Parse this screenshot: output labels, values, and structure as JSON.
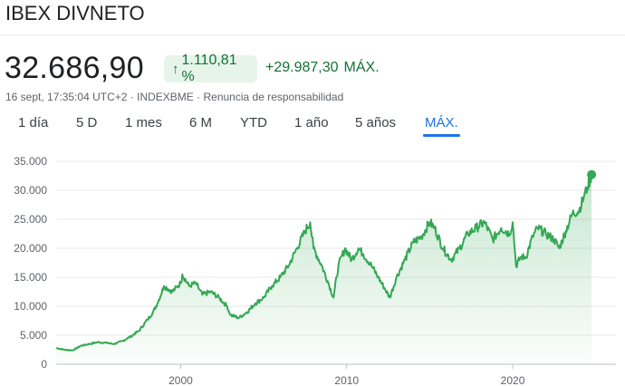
{
  "header": {
    "title": "IBEX DIVNETO",
    "price": "32.686,90",
    "change_pct": "1.110,81 %",
    "change_abs": "+29.987,30",
    "change_period": "MÁX.",
    "arrow_icon": "arrow-up-icon",
    "positive_color": "#137333",
    "badge_bg": "#e6f4ea"
  },
  "meta": {
    "timestamp": "16 sept, 17:35:04 UTC+2",
    "separator": "·",
    "exchange": "INDEXBME",
    "disclaimer": "Renuncia de responsabilidad"
  },
  "tabs": [
    {
      "label": "1 día"
    },
    {
      "label": "5 D"
    },
    {
      "label": "1 mes"
    },
    {
      "label": "6 M"
    },
    {
      "label": "YTD"
    },
    {
      "label": "1 año"
    },
    {
      "label": "5 años"
    },
    {
      "label": "MÁX.",
      "active": true
    }
  ],
  "chart_data": {
    "type": "area",
    "line_color": "#34a853",
    "ylim": [
      0,
      35000
    ],
    "xlim": [
      1992.5,
      2024.8
    ],
    "y_ticks": [
      {
        "value": 0,
        "label": "0"
      },
      {
        "value": 5000,
        "label": "5.000"
      },
      {
        "value": 10000,
        "label": "10.000"
      },
      {
        "value": 15000,
        "label": "15.000"
      },
      {
        "value": 20000,
        "label": "20.000"
      },
      {
        "value": 25000,
        "label": "25.000"
      },
      {
        "value": 30000,
        "label": "30.000"
      },
      {
        "value": 35000,
        "label": "35.000"
      }
    ],
    "x_ticks": [
      {
        "value": 2000,
        "label": "2000"
      },
      {
        "value": 2010,
        "label": "2010"
      },
      {
        "value": 2020,
        "label": "2020"
      }
    ],
    "series": [
      {
        "x": [
          1992.5,
          1993.0,
          1993.5,
          1994.0,
          1994.5,
          1995.0,
          1995.5,
          1996.0,
          1996.5,
          1997.0,
          1997.5,
          1998.0,
          1998.3,
          1998.6,
          1999.0,
          1999.5,
          2000.0,
          2000.1,
          2000.5,
          2000.9,
          2001.3,
          2001.8,
          2002.3,
          2002.8,
          2003.0,
          2003.5,
          2004.0,
          2004.5,
          2005.0,
          2005.5,
          2006.0,
          2006.5,
          2007.0,
          2007.5,
          2007.8,
          2008.0,
          2008.5,
          2008.9,
          2009.2,
          2009.5,
          2009.9,
          2010.3,
          2010.7,
          2011.0,
          2011.5,
          2011.9,
          2012.3,
          2012.6,
          2013.0,
          2013.5,
          2014.0,
          2014.5,
          2015.0,
          2015.3,
          2015.8,
          2016.3,
          2016.8,
          2017.3,
          2017.8,
          2018.3,
          2018.8,
          2019.3,
          2019.8,
          2020.0,
          2020.2,
          2020.5,
          2020.8,
          2021.2,
          2021.5,
          2022.0,
          2022.5,
          2022.8,
          2023.2,
          2023.6,
          2024.0,
          2024.3,
          2024.5,
          2024.75
        ],
        "y": [
          2800,
          2500,
          2400,
          3200,
          3500,
          3800,
          3700,
          3500,
          4000,
          4800,
          5800,
          7700,
          8800,
          10500,
          13500,
          12500,
          14000,
          15500,
          13500,
          14000,
          12000,
          12500,
          11500,
          10000,
          8500,
          8000,
          9000,
          10500,
          11500,
          13500,
          15000,
          17000,
          20000,
          23000,
          24500,
          20000,
          17000,
          14000,
          11500,
          17000,
          20000,
          18000,
          20000,
          19000,
          17000,
          15000,
          13000,
          11500,
          15000,
          18000,
          21000,
          22000,
          24500,
          23500,
          20000,
          18000,
          20000,
          22500,
          23500,
          24500,
          21500,
          23500,
          22500,
          24500,
          17000,
          18500,
          18500,
          22000,
          23500,
          22500,
          21500,
          20000,
          23000,
          26000,
          26500,
          29000,
          30500,
          32700
        ]
      }
    ]
  }
}
